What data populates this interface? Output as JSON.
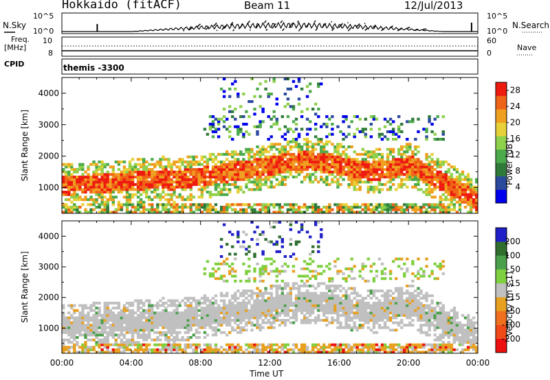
{
  "header": {
    "station": "Hokkaido (fitACF)",
    "beam": "Beam 11",
    "date": "12/Jul/2013"
  },
  "top_panel": {
    "nsky_label": "N.Sky",
    "nsearch_label": "N.Search",
    "nsky_ticks": [
      "10^5",
      "10^0"
    ],
    "nsearch_ticks": [
      "10^5",
      "10^0"
    ],
    "freq_label": "Freq.",
    "freq_unit": "[MHz]",
    "freq_ticks": [
      "10",
      "8"
    ],
    "nave_label": "Nave",
    "nave_ticks": [
      "60",
      "0"
    ],
    "cpid_label": "CPID",
    "cpid_value": "themis -3300"
  },
  "x_axis": {
    "label": "Time UT",
    "ticks": [
      "00:00",
      "04:00",
      "08:00",
      "12:00",
      "16:00",
      "20:00",
      "00:00"
    ]
  },
  "chart_data": [
    {
      "type": "heatmap",
      "quantity": "Power",
      "colorbar_label": "Power [dB]",
      "ylabel": "Slant Range [km]",
      "xlabel": "",
      "xlim_hours": [
        0,
        24
      ],
      "ylim": [
        180,
        4500
      ],
      "y_ticks": [
        1000,
        2000,
        3000,
        4000
      ],
      "colorbar_ticks": [
        "4",
        "8",
        "12",
        "16",
        "20",
        "24",
        "28"
      ],
      "colorbar_range": [
        0,
        30
      ],
      "colorscale": [
        "#0000ee",
        "#2b4a9e",
        "#2f7a3a",
        "#4caa4c",
        "#8fd04c",
        "#e8d038",
        "#f0a020",
        "#f06418",
        "#ee1a10"
      ]
    },
    {
      "type": "heatmap",
      "quantity": "Velocity",
      "colorbar_label": "Velocity [m s-1]",
      "ylabel": "Slant Range [km]",
      "xlabel": "Time UT",
      "xlim_hours": [
        0,
        24
      ],
      "ylim": [
        180,
        4500
      ],
      "y_ticks": [
        1000,
        2000,
        3000,
        4000
      ],
      "colorbar_ticks": [
        "200",
        "100",
        "50",
        "15",
        "-15",
        "-50",
        "-100",
        "-200"
      ],
      "colorscale": [
        "#2020c8",
        "#2f6e2f",
        "#4aa04a",
        "#7fd040",
        "#c0c0c0",
        "#e8a020",
        "#f07020",
        "#f04a18",
        "#ee1010"
      ]
    }
  ]
}
